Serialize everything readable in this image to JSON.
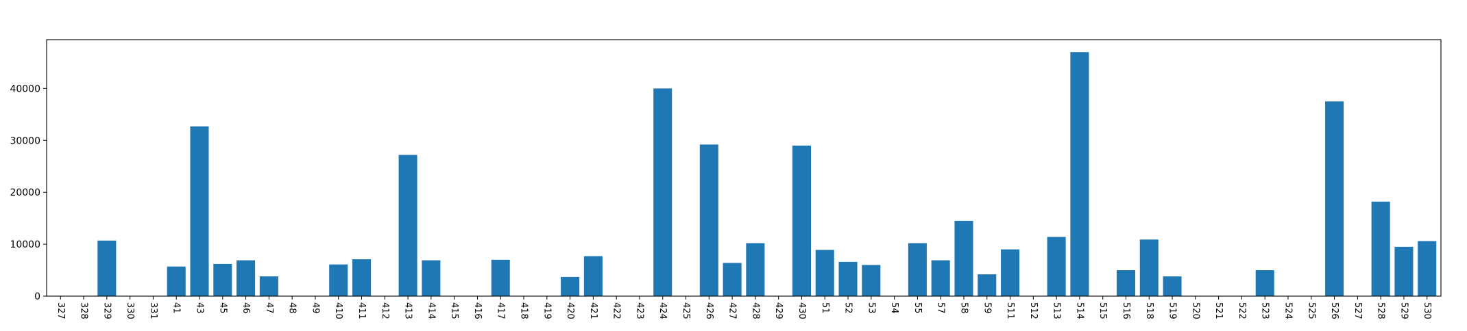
{
  "chart_data": {
    "type": "bar",
    "title": "",
    "xlabel": "",
    "ylabel": "",
    "ylim": [
      0,
      49400
    ],
    "yticks": [
      0,
      10000,
      20000,
      30000,
      40000
    ],
    "grid": false,
    "legend": "none",
    "bar_color": "#1f77b4",
    "categories": [
      "327",
      "328",
      "329",
      "330",
      "331",
      "41",
      "43",
      "45",
      "46",
      "47",
      "48",
      "49",
      "410",
      "411",
      "412",
      "413",
      "414",
      "415",
      "416",
      "417",
      "418",
      "419",
      "420",
      "421",
      "422",
      "423",
      "424",
      "425",
      "426",
      "427",
      "428",
      "429",
      "430",
      "51",
      "52",
      "53",
      "54",
      "55",
      "57",
      "58",
      "59",
      "511",
      "512",
      "513",
      "514",
      "515",
      "516",
      "518",
      "519",
      "520",
      "521",
      "522",
      "523",
      "524",
      "525",
      "526",
      "527",
      "528",
      "529",
      "530"
    ],
    "values": [
      0,
      0,
      10700,
      0,
      0,
      5700,
      32700,
      6200,
      6900,
      3800,
      0,
      0,
      6100,
      7100,
      0,
      27200,
      6900,
      0,
      0,
      7000,
      0,
      0,
      3700,
      7700,
      0,
      0,
      40000,
      0,
      29200,
      6400,
      10200,
      0,
      29000,
      8900,
      6600,
      6000,
      0,
      10200,
      6900,
      14500,
      4200,
      9000,
      0,
      11400,
      47000,
      0,
      5000,
      10900,
      3800,
      0,
      0,
      0,
      5000,
      0,
      0,
      37500,
      0,
      18200,
      9500,
      10600
    ]
  }
}
